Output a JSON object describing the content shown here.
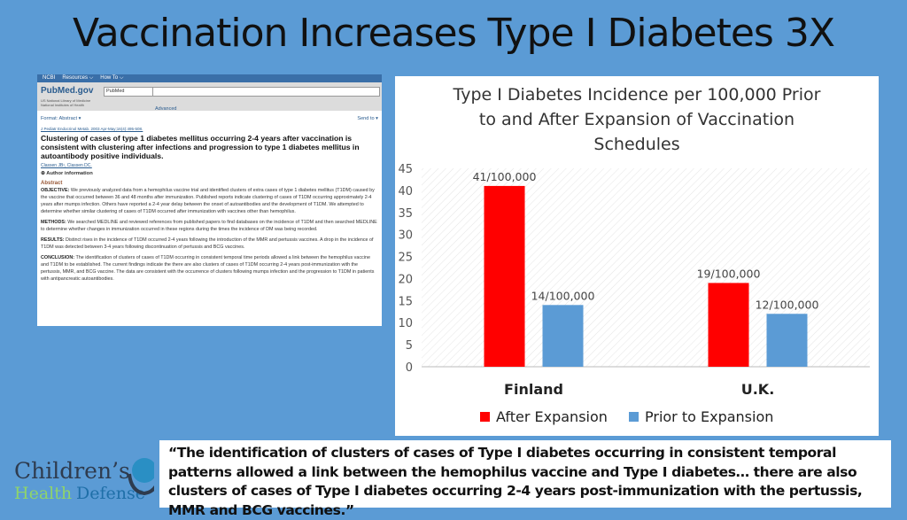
{
  "slide": {
    "title": "Vaccination Increases Type I Diabetes 3X",
    "quote": "“The identification of clusters of cases of Type I diabetes occurring in consistent temporal patterns allowed a link between the hemophilus vaccine and Type I diabetes… there are also clusters of cases of Type I diabetes occurring 2-4 years post-immunization with the pertussis, MMR and BCG vaccines.”",
    "logo": {
      "line1": "Children’s",
      "line2a": "Health",
      "line2b": "Defense"
    }
  },
  "pubmed": {
    "ncbi": "NCBI",
    "resources": "Resources ⌵",
    "howto": "How To ⌵",
    "logo": "PubMed.gov",
    "library": "US National Library of Medicine National Institutes of Health",
    "db_select": "PubMed",
    "advanced": "Advanced",
    "format": "Format: Abstract ▾",
    "send_to": "Send to ▾",
    "citation": "J Pediatr Endocrinol Metab. 2003 Apr-May;16(4):495-508.",
    "article_title": "Clustering of cases of type 1 diabetes mellitus occurring 2-4 years after vaccination is consistent with clustering after infections and progression to type 1 diabetes mellitus in autoantibody positive individuals.",
    "authors": "Classen JB¹, Classen DC.",
    "author_info": "⊕ Author information",
    "abstract_heading": "Abstract",
    "sections": [
      {
        "label": "OBJECTIVE:",
        "text": " We previously analyzed data from a hemophilus vaccine trial and identified clusters of extra cases of type 1 diabetes mellitus (T1DM) caused by the vaccine that occurred between 36 and 48 months after immunization. Published reports indicate clustering of cases of T1DM occurring approximately 2-4 years after mumps infection. Others have reported a 2-4 year delay between the onset of autoantibodies and the development of T1DM. We attempted to determine whether similar clustering of cases of T1DM occurred after immunization with vaccines other than hemophilus."
      },
      {
        "label": "METHODS:",
        "text": " We searched MEDLINE and reviewed references from published papers to find databases on the incidence of T1DM and then searched MEDLINE to determine whether changes in immunization occurred in these regions during the times the incidence of DM was being recorded."
      },
      {
        "label": "RESULTS:",
        "text": " Distinct rises in the incidence of T1DM occurred 2-4 years following the introduction of the MMR and pertussis vaccines. A drop in the incidence of T1DM was detected between 3-4 years following discontinuation of pertussis and BCG vaccines."
      },
      {
        "label": "CONCLUSION:",
        "text": " The identification of clusters of cases of T1DM occurring in consistent temporal time periods allowed a link between the hemophilus vaccine and T1DM to be established. The current findings indicate the there are also clusters of cases of T1DM occurring 2-4 years post-immunization with the pertussis, MMR, and BCG vaccine. The data are consistent with the occurrence of clusters following mumps infection and the progression to T1DM in patients with antipancreatic autoantibodies."
      }
    ]
  },
  "chart_data": {
    "type": "bar",
    "title": "Type I Diabetes Incidence per 100,000 Prior to and After Expansion of Vaccination Schedules",
    "title_lines": [
      "Type I Diabetes Incidence per 100,000 Prior",
      "to and After Expansion of Vaccination",
      "Schedules"
    ],
    "categories": [
      "Finland",
      "U.K."
    ],
    "series": [
      {
        "name": "After Expansion",
        "values": [
          41,
          19
        ],
        "labels": [
          "41/100,000",
          "19/100,000"
        ],
        "color": "#ff0000"
      },
      {
        "name": "Prior to Expansion",
        "values": [
          14,
          12
        ],
        "labels": [
          "14/100,000",
          "12/100,000"
        ],
        "color": "#5b9bd5"
      }
    ],
    "ylim": [
      0,
      45
    ],
    "yticks": [
      0,
      5,
      10,
      15,
      20,
      25,
      30,
      35,
      40,
      45
    ],
    "grid": "diagonal-hatched background",
    "legend": "bottom"
  }
}
